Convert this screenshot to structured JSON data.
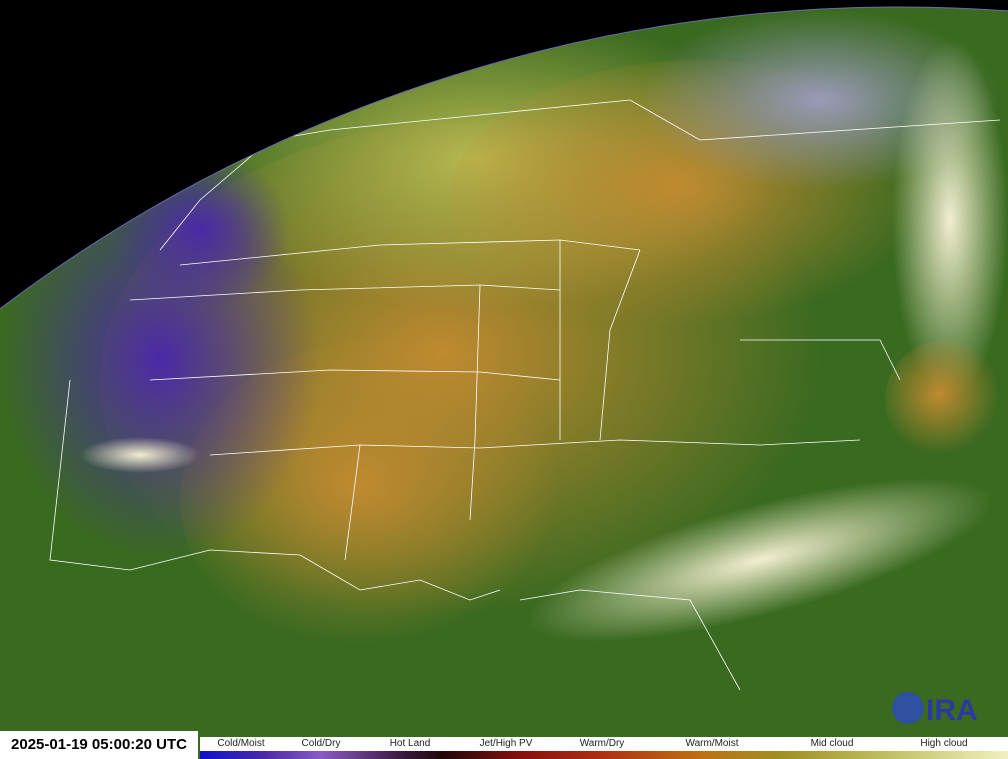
{
  "timestamp": "2025-01-19 05:00:20 UTC",
  "legend": {
    "labels": [
      "Cold/Moist",
      "Cold/Dry",
      "Hot Land",
      "Jet/High PV",
      "Warm/Dry",
      "Warm/Moist",
      "Mid cloud",
      "High cloud"
    ]
  },
  "logo": {
    "text": "CIRA"
  },
  "colors": {
    "background": "#000000",
    "boundaries": "#ffffff",
    "cloud": "#f0ecc8",
    "moist_green": "#2f6a1c",
    "dry_orange": "#b07a2a"
  }
}
